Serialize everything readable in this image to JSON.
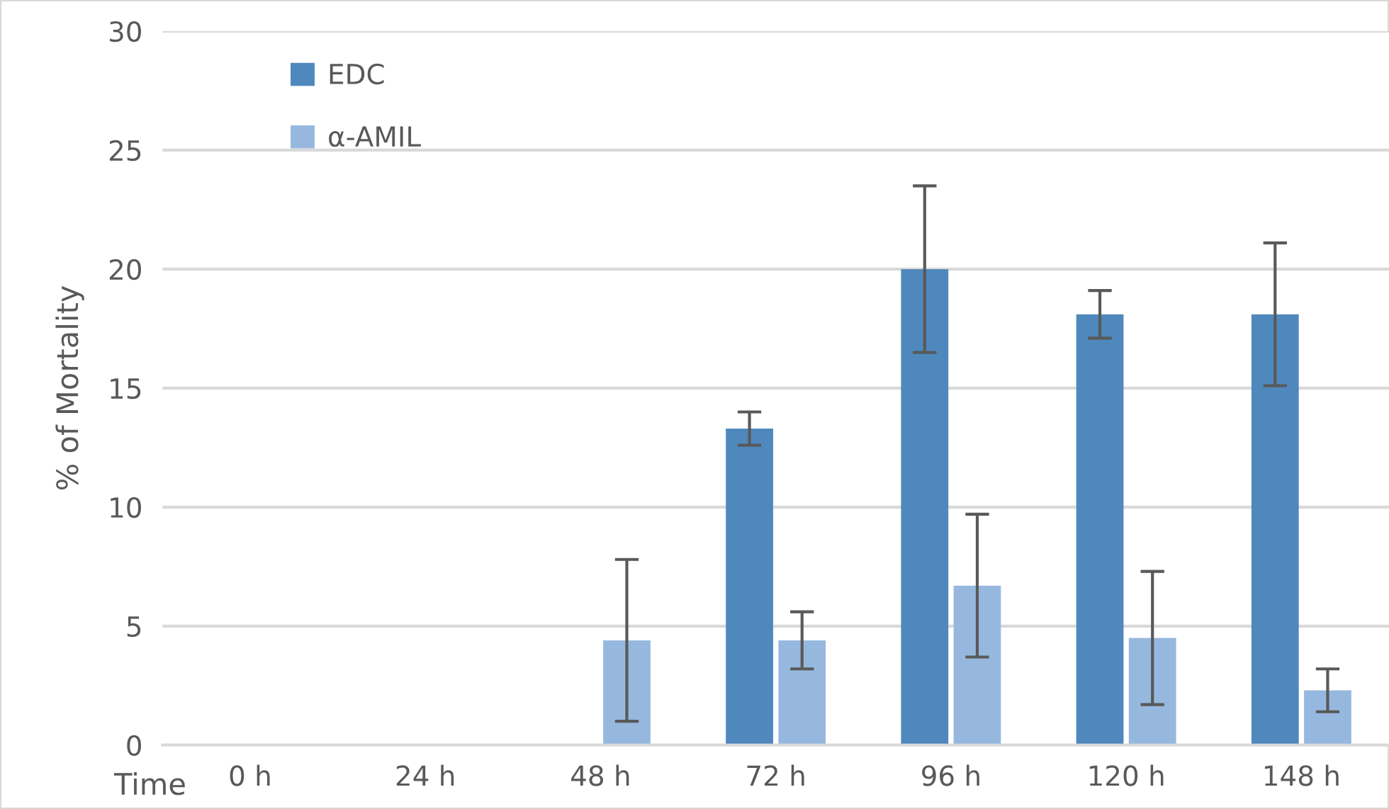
{
  "chart_data": {
    "type": "bar",
    "xlabel": "Time",
    "ylabel": "% of Mortality",
    "categories": [
      "0 h",
      "24 h",
      "48 h",
      "72 h",
      "96 h",
      "120 h",
      "148 h"
    ],
    "series": [
      {
        "name": "EDC",
        "color": "#4f88bc",
        "values": [
          0,
          0,
          0,
          13.3,
          20,
          18.1,
          18.1
        ],
        "errors": [
          null,
          null,
          null,
          0.7,
          3.5,
          1.0,
          3.0
        ]
      },
      {
        "name": "α-AMIL",
        "color": "#97b8de",
        "values": [
          0,
          0,
          4.4,
          4.4,
          6.7,
          4.5,
          2.3
        ],
        "errors": [
          null,
          null,
          3.4,
          1.2,
          3.0,
          2.8,
          0.9
        ]
      }
    ],
    "ylim": [
      0,
      30
    ],
    "yticks": [
      0,
      5,
      10,
      15,
      20,
      25,
      30
    ],
    "grid": "y",
    "legend": "top left"
  }
}
